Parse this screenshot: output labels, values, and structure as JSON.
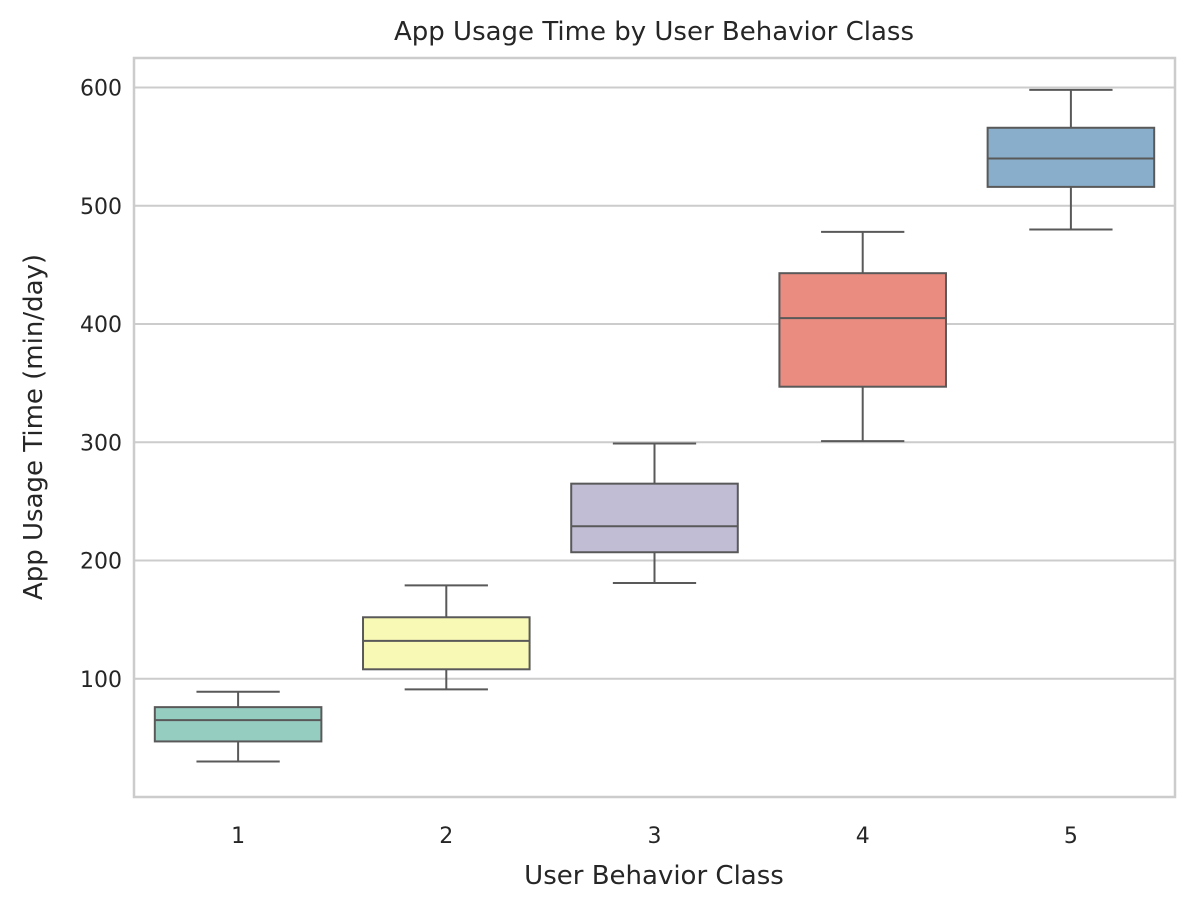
{
  "chart_data": {
    "type": "box",
    "title": "App Usage Time by User Behavior Class",
    "xlabel": "User Behavior Class",
    "ylabel": "App Usage Time (min/day)",
    "categories": [
      "1",
      "2",
      "3",
      "4",
      "5"
    ],
    "yticks": [
      100,
      200,
      300,
      400,
      500,
      600
    ],
    "ylim": [
      0,
      625
    ],
    "grid": "horizontal",
    "boxes": [
      {
        "category": "1",
        "min": 30,
        "q1": 47,
        "median": 65,
        "q3": 76,
        "max": 89,
        "color": "#96cdc1"
      },
      {
        "category": "2",
        "min": 91,
        "q1": 108,
        "median": 132,
        "q3": 152,
        "max": 179,
        "color": "#f9f9b6"
      },
      {
        "category": "3",
        "min": 181,
        "q1": 207,
        "median": 229,
        "q3": 265,
        "max": 299,
        "color": "#c0bdd5"
      },
      {
        "category": "4",
        "min": 301,
        "q1": 347,
        "median": 405,
        "q3": 443,
        "max": 478,
        "color": "#eb8c80"
      },
      {
        "category": "5",
        "min": 480,
        "q1": 516,
        "median": 540,
        "q3": 566,
        "max": 598,
        "color": "#88aecc"
      }
    ],
    "colors": {
      "grid": "#cccccc",
      "spine": "#cccccc",
      "box_edge": "#595959",
      "text": "#262626"
    }
  }
}
